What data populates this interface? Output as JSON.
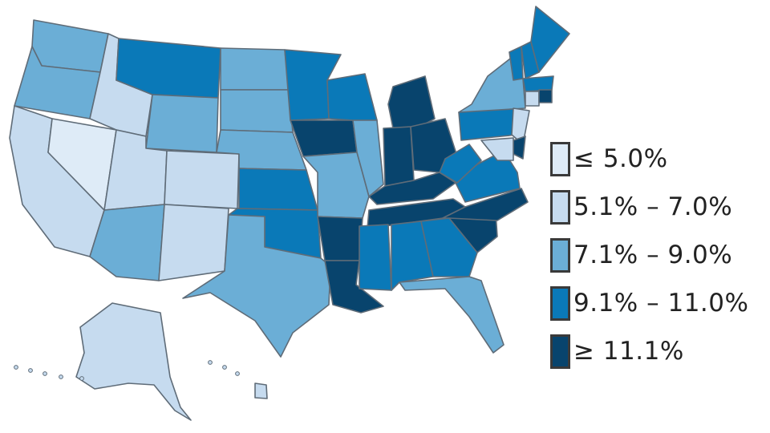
{
  "legend": {
    "items": [
      {
        "label": "≤ 5.0%",
        "color": "#deebf7"
      },
      {
        "label": "5.1% – 7.0%",
        "color": "#c6dbef"
      },
      {
        "label": "7.1% – 9.0%",
        "color": "#6baed6"
      },
      {
        "label": "9.1% – 11.0%",
        "color": "#0a79b8"
      },
      {
        "label": "≥ 11.1%",
        "color": "#08446d"
      }
    ]
  },
  "states": [
    {
      "name": "Washington",
      "bin": 2
    },
    {
      "name": "Oregon",
      "bin": 2
    },
    {
      "name": "California",
      "bin": 1
    },
    {
      "name": "Nevada",
      "bin": 0
    },
    {
      "name": "Idaho",
      "bin": 1
    },
    {
      "name": "Montana",
      "bin": 3
    },
    {
      "name": "Wyoming",
      "bin": 2
    },
    {
      "name": "Utah",
      "bin": 1
    },
    {
      "name": "Colorado",
      "bin": 1
    },
    {
      "name": "Arizona",
      "bin": 2
    },
    {
      "name": "New Mexico",
      "bin": 1
    },
    {
      "name": "North Dakota",
      "bin": 2
    },
    {
      "name": "South Dakota",
      "bin": 2
    },
    {
      "name": "Nebraska",
      "bin": 2
    },
    {
      "name": "Kansas",
      "bin": 3
    },
    {
      "name": "Oklahoma",
      "bin": 3
    },
    {
      "name": "Texas",
      "bin": 2
    },
    {
      "name": "Minnesota",
      "bin": 3
    },
    {
      "name": "Iowa",
      "bin": 4
    },
    {
      "name": "Missouri",
      "bin": 2
    },
    {
      "name": "Arkansas",
      "bin": 4
    },
    {
      "name": "Louisiana",
      "bin": 4
    },
    {
      "name": "Wisconsin",
      "bin": 3
    },
    {
      "name": "Illinois",
      "bin": 2
    },
    {
      "name": "Michigan",
      "bin": 4
    },
    {
      "name": "Indiana",
      "bin": 4
    },
    {
      "name": "Ohio",
      "bin": 4
    },
    {
      "name": "Kentucky",
      "bin": 4
    },
    {
      "name": "Tennessee",
      "bin": 4
    },
    {
      "name": "Mississippi",
      "bin": 3
    },
    {
      "name": "Alabama",
      "bin": 3
    },
    {
      "name": "Georgia",
      "bin": 3
    },
    {
      "name": "Florida",
      "bin": 2
    },
    {
      "name": "South Carolina",
      "bin": 4
    },
    {
      "name": "North Carolina",
      "bin": 4
    },
    {
      "name": "Virginia",
      "bin": 3
    },
    {
      "name": "West Virginia",
      "bin": 3
    },
    {
      "name": "Pennsylvania",
      "bin": 3
    },
    {
      "name": "New York",
      "bin": 2
    },
    {
      "name": "Vermont",
      "bin": 3
    },
    {
      "name": "New Hampshire",
      "bin": 3
    },
    {
      "name": "Maine",
      "bin": 3
    },
    {
      "name": "Massachusetts",
      "bin": 3
    },
    {
      "name": "Connecticut",
      "bin": 1
    },
    {
      "name": "Rhode Island",
      "bin": 4
    },
    {
      "name": "New Jersey",
      "bin": 1
    },
    {
      "name": "Delaware",
      "bin": 4
    },
    {
      "name": "Maryland",
      "bin": 1
    },
    {
      "name": "Alaska",
      "bin": 1
    },
    {
      "name": "Hawaii",
      "bin": 1
    }
  ]
}
